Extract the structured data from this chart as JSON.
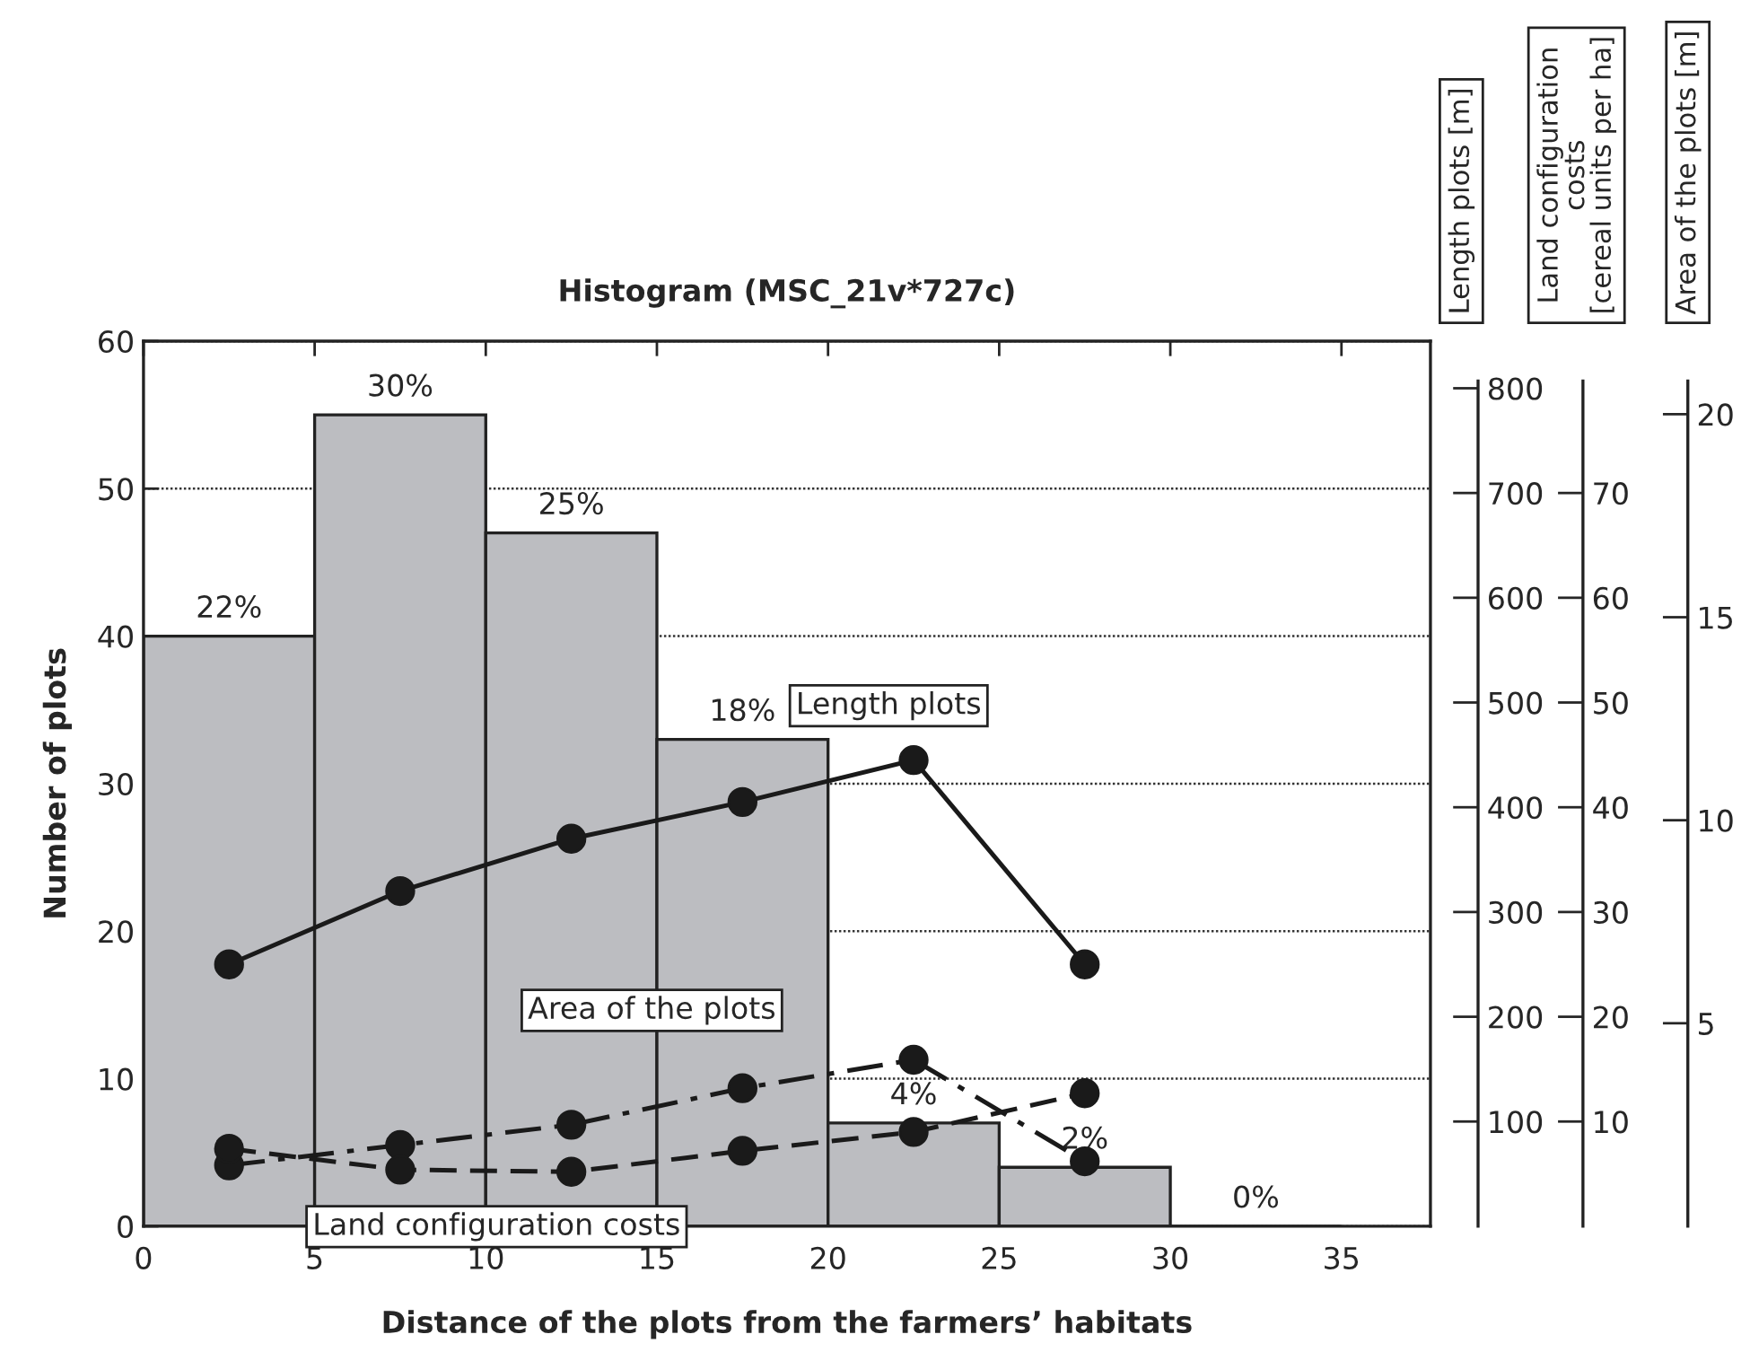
{
  "chart_data": [
    {
      "type": "histogram",
      "title": "Histogram (MSC_21v*727c)",
      "xlabel": "Distance of the plots from the farmers’ habitats",
      "ylabel": "Number of plots",
      "y2label": "Length plots [m]",
      "y3label": "Area of the plots [m]",
      "bins": [
        0,
        5,
        10,
        15,
        20,
        25,
        30,
        35
      ],
      "values": [
        40,
        55,
        47,
        33,
        7,
        4,
        0
      ],
      "color": "#bcbdc1",
      "annotations": [
        {
          "text": "22%",
          "x": 2.5,
          "y": 40
        },
        {
          "text": "30%",
          "x": 7.5,
          "y": 55
        },
        {
          "text": "25%",
          "x": 12.5,
          "y": 47
        },
        {
          "text": "18%",
          "x": 17.5,
          "y": 33
        },
        {
          "text": "4%",
          "x": 22.5,
          "y": 7
        },
        {
          "text": "2%",
          "x": 27.5,
          "y": 4
        },
        {
          "text": "0%",
          "x": 32.5,
          "y": 0
        }
      ],
      "series": [
        {
          "name": "Length plots",
          "type": "line",
          "axis": "y2",
          "color": "#1a1a1a",
          "line_style": "solid",
          "marker": "circle",
          "x": [
            2.5,
            7.5,
            12.5,
            17.5,
            22.5,
            27.5
          ],
          "values": [
            250,
            320,
            370,
            405,
            445,
            250
          ]
        },
        {
          "name": "Area of the plots",
          "type": "line",
          "axis": "y3",
          "color": "#1a1a1a",
          "line_style": "dashdot",
          "marker": "circle",
          "x": [
            2.5,
            7.5,
            12.5,
            17.5,
            22.5,
            27.5
          ],
          "values": [
            1.5,
            2.0,
            2.5,
            3.4,
            4.1,
            1.6
          ]
        }
      ],
      "xlim": [
        0,
        37.6
      ],
      "xticks": [
        0,
        5,
        10,
        15,
        20,
        25,
        30,
        35
      ],
      "ylim": [
        0,
        60
      ],
      "yticks": [
        0,
        10,
        20,
        30,
        40,
        50,
        60
      ],
      "y2lim": [
        0,
        845
      ],
      "y2ticks": [
        100,
        200,
        300,
        400,
        500,
        600,
        700,
        800
      ],
      "y3lim": [
        0,
        21.8
      ],
      "y3ticks": [
        5,
        10,
        15,
        20
      ],
      "grid": "y",
      "legend": false
    },
    {
      "type": "line",
      "ylabel": "Land configuration\ncosts\n[cereal units per ha]",
      "tick_labels": "y",
      "series": [
        {
          "name": "Land configuration costs",
          "color": "#1a1a1a",
          "line_style": "dashed",
          "marker": "circle",
          "x": [
            2.5,
            7.5,
            12.5,
            17.5,
            22.5,
            27.5
          ],
          "values": [
            7.4,
            5.4,
            5.2,
            7.2,
            9.0,
            12.7
          ]
        }
      ],
      "xlim": [
        0,
        37.6
      ],
      "ylim": [
        0,
        84.5
      ],
      "yticks": [
        10,
        20,
        30,
        40,
        50,
        60,
        70
      ]
    }
  ]
}
